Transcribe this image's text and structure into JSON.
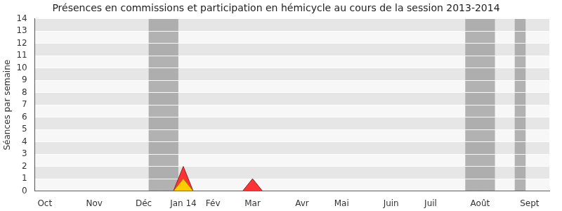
{
  "chart_data": {
    "type": "area",
    "title": "Présences en commissions et participation en hémicycle au cours de la session 2013-2014",
    "y_label": "Séances par semaine",
    "x": [
      0,
      1,
      2,
      3,
      4,
      5,
      6,
      7,
      8,
      9,
      10,
      11,
      12,
      13,
      14,
      15,
      16,
      17,
      18,
      19,
      20,
      21,
      22,
      23,
      24,
      25,
      26,
      27,
      28,
      29,
      30,
      31,
      32,
      33,
      34,
      35,
      36,
      37,
      38,
      39,
      40,
      41,
      42,
      43,
      44,
      45,
      46,
      47,
      48,
      49,
      50,
      51,
      52
    ],
    "series": [
      {
        "color": "#ff3333",
        "values": [
          0,
          0,
          0,
          0,
          0,
          0,
          0,
          0,
          0,
          0,
          0,
          0,
          0,
          0,
          0,
          2,
          0,
          0,
          0,
          0,
          0,
          0,
          1,
          0,
          0,
          0,
          0,
          0,
          0,
          0,
          0,
          0,
          0,
          0,
          0,
          0,
          0,
          0,
          0,
          0,
          0,
          0,
          0,
          0,
          0,
          0,
          0,
          0,
          0,
          0,
          0,
          0,
          0
        ]
      },
      {
        "color": "#ffcc00",
        "values": [
          0,
          0,
          0,
          0,
          0,
          0,
          0,
          0,
          0,
          0,
          0,
          0,
          0,
          0,
          0,
          1,
          0,
          0,
          0,
          0,
          0,
          0,
          0,
          0,
          0,
          0,
          0,
          0,
          0,
          0,
          0,
          0,
          0,
          0,
          0,
          0,
          0,
          0,
          0,
          0,
          0,
          0,
          0,
          0,
          0,
          0,
          0,
          0,
          0,
          0,
          0,
          0,
          0
        ]
      }
    ],
    "recess_weeks": [
      [
        11.5,
        14.5
      ],
      [
        43.5,
        46.5
      ],
      [
        48.5,
        49.6
      ]
    ],
    "xlim": [
      0,
      52
    ],
    "xticks": [
      {
        "value": 1,
        "label": "Oct"
      },
      {
        "value": 6,
        "label": "Nov"
      },
      {
        "value": 11,
        "label": "Déc"
      },
      {
        "value": 15,
        "label": "Jan 14"
      },
      {
        "value": 18,
        "label": "Fév"
      },
      {
        "value": 22,
        "label": "Mar"
      },
      {
        "value": 27,
        "label": "Avr"
      },
      {
        "value": 31,
        "label": "Mai"
      },
      {
        "value": 36,
        "label": "Juin"
      },
      {
        "value": 40,
        "label": "Juil"
      },
      {
        "value": 45,
        "label": "Août"
      },
      {
        "value": 50,
        "label": "Sept"
      }
    ],
    "ylim": [
      0,
      14
    ],
    "yticks": [
      0,
      1,
      2,
      3,
      4,
      5,
      6,
      7,
      8,
      9,
      10,
      11,
      12,
      13,
      14
    ],
    "grid": true
  }
}
